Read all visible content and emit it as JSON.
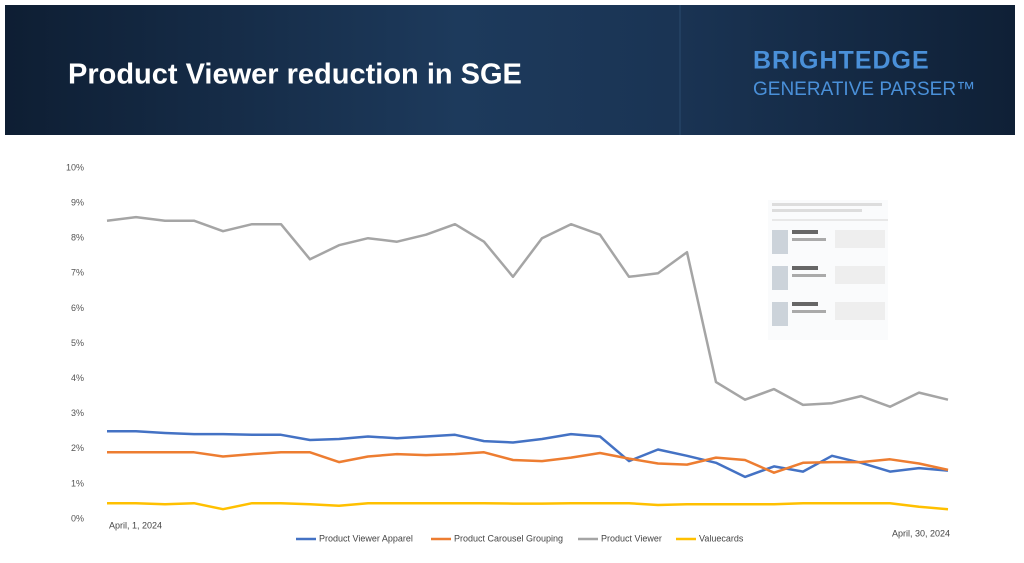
{
  "header": {
    "brand": "BRIGHTEDGE",
    "product": "GENERATIVE PARSER™"
  },
  "chart_data": {
    "type": "line",
    "title": "Product Viewer reduction in SGE",
    "categories": [
      "April, 1, 2024",
      null,
      null,
      null,
      null,
      null,
      null,
      null,
      null,
      null,
      null,
      null,
      null,
      null,
      null,
      null,
      null,
      null,
      null,
      null,
      null,
      null,
      null,
      null,
      null,
      null,
      null,
      null,
      null,
      "April, 30, 2024"
    ],
    "series": [
      {
        "name": "Product Viewer Apparel",
        "color": "#4472c4",
        "values": [
          2.5,
          2.5,
          2.45,
          2.42,
          2.42,
          2.4,
          2.4,
          2.25,
          2.28,
          2.35,
          2.3,
          2.35,
          2.4,
          2.22,
          2.18,
          2.28,
          2.42,
          2.35,
          1.65,
          1.98,
          1.8,
          1.6,
          1.2,
          1.5,
          1.35,
          1.8,
          1.6,
          1.35,
          1.45,
          1.38
        ]
      },
      {
        "name": "Product Carousel Grouping",
        "color": "#ed7d31",
        "values": [
          1.9,
          1.9,
          1.9,
          1.9,
          1.78,
          1.85,
          1.9,
          1.9,
          1.62,
          1.78,
          1.85,
          1.82,
          1.85,
          1.9,
          1.68,
          1.65,
          1.75,
          1.88,
          1.72,
          1.58,
          1.55,
          1.75,
          1.68,
          1.32,
          1.6,
          1.62,
          1.62,
          1.7,
          1.58,
          1.4
        ]
      },
      {
        "name": "Product Viewer",
        "color": "#a5a5a5",
        "values": [
          8.5,
          8.6,
          8.5,
          8.5,
          8.2,
          8.4,
          8.4,
          7.4,
          7.8,
          8.0,
          7.9,
          8.1,
          8.4,
          7.9,
          6.9,
          8.0,
          8.4,
          8.1,
          6.9,
          7.0,
          7.6,
          3.9,
          3.4,
          3.7,
          3.25,
          3.3,
          3.5,
          3.2,
          3.6,
          3.4
        ]
      },
      {
        "name": "Valuecards",
        "color": "#ffc000",
        "values": [
          0.45,
          0.45,
          0.42,
          0.45,
          0.28,
          0.45,
          0.45,
          0.42,
          0.38,
          0.45,
          0.45,
          0.45,
          0.45,
          0.45,
          0.44,
          0.44,
          0.45,
          0.45,
          0.45,
          0.4,
          0.42,
          0.42,
          0.42,
          0.42,
          0.45,
          0.45,
          0.45,
          0.45,
          0.35,
          0.28
        ]
      }
    ],
    "ylim": [
      0,
      10
    ],
    "yticks": [
      {
        "value": 0,
        "label": "0%"
      },
      {
        "value": 1,
        "label": "1%"
      },
      {
        "value": 2,
        "label": "2%"
      },
      {
        "value": 3,
        "label": "3%"
      },
      {
        "value": 4,
        "label": "4%"
      },
      {
        "value": 5,
        "label": "5%"
      },
      {
        "value": 6,
        "label": "6%"
      },
      {
        "value": 7,
        "label": "7%"
      },
      {
        "value": 8,
        "label": "8%"
      },
      {
        "value": 9,
        "label": "9%"
      },
      {
        "value": 10,
        "label": "10%"
      }
    ],
    "grid": false,
    "legend": "bottom"
  }
}
